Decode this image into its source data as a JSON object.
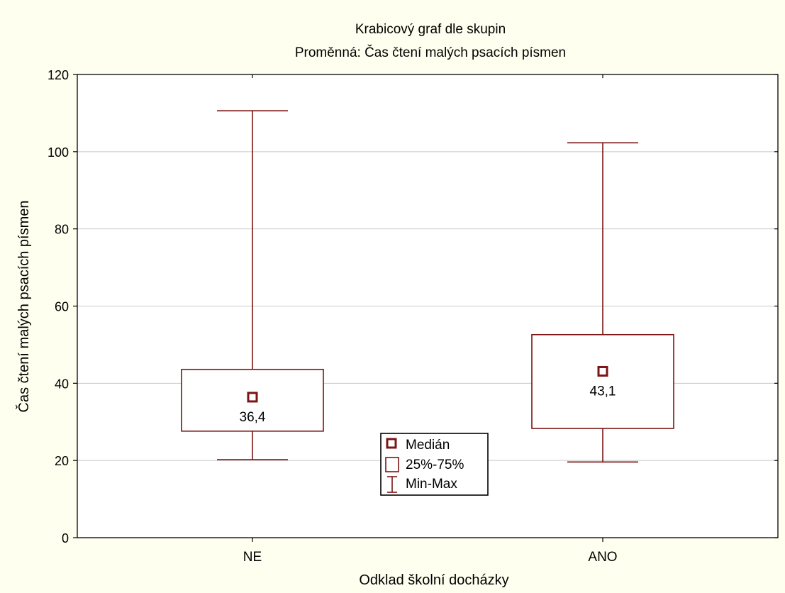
{
  "chart_data": {
    "type": "boxplot",
    "title": "Krabicový graf dle skupin",
    "subtitle": "Proměnná: Čas čtení malých psacích písmen",
    "xlabel": "Odklad školní docházky",
    "ylabel": "Čas čtení malých psacích písmen",
    "ylim": [
      0,
      120
    ],
    "yticks": [
      0,
      20,
      40,
      60,
      80,
      100,
      120
    ],
    "grid": "horizontal",
    "categories": [
      "NE",
      "ANO"
    ],
    "boxes": [
      {
        "category": "NE",
        "min": 20.2,
        "q1": 27.6,
        "median": 36.4,
        "q3": 43.6,
        "max": 110.6,
        "median_label": "36,4"
      },
      {
        "category": "ANO",
        "min": 19.6,
        "q1": 28.3,
        "median": 43.1,
        "q3": 52.6,
        "max": 102.3,
        "median_label": "43,1"
      }
    ],
    "legend": {
      "placement": "center-bottom",
      "entries": [
        "Medián",
        "25%-75%",
        "Min-Max"
      ]
    },
    "colors": {
      "box": "#7b1414",
      "grid": "#c8c8c8",
      "background": "#fffff0",
      "plot_background": "#ffffff"
    }
  }
}
